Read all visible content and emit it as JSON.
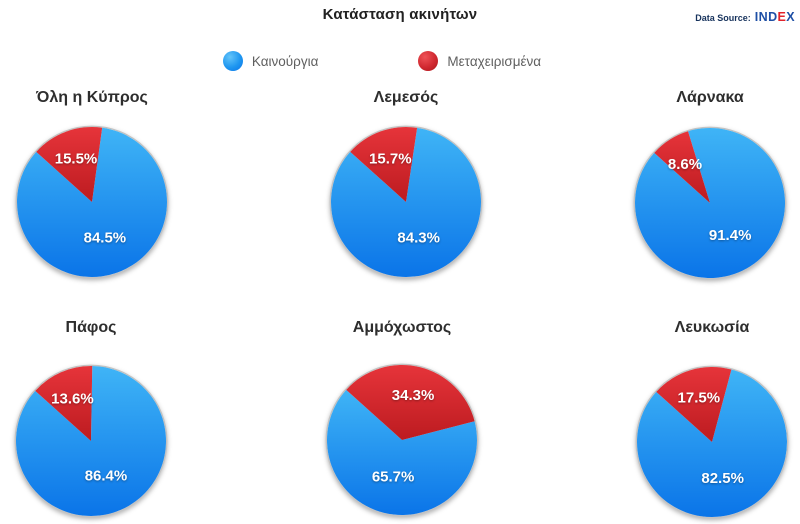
{
  "page": {
    "title": "Κατάσταση ακινήτων"
  },
  "data_source": {
    "label": "Data Source:",
    "brand_parts": [
      {
        "text": "IND",
        "color": "#1E4FA5"
      },
      {
        "text": "E",
        "color": "#E2242B"
      },
      {
        "text": "X",
        "color": "#1E4FA5"
      }
    ]
  },
  "legend": [
    {
      "label": "Καινούργια",
      "color": "#1E96F0"
    },
    {
      "label": "Μεταχειρισμένα",
      "color": "#C82127"
    }
  ],
  "chart_data": [
    {
      "type": "pie",
      "title": "Όλη η Κύπρος",
      "categories": [
        "Καινούργια",
        "Μεταχειρισμένα"
      ],
      "values": [
        84.5,
        15.5
      ],
      "value_labels": [
        "84.5%",
        "15.5%"
      ]
    },
    {
      "type": "pie",
      "title": "Λεμεσός",
      "categories": [
        "Καινούργια",
        "Μεταχειρισμένα"
      ],
      "values": [
        84.3,
        15.7
      ],
      "value_labels": [
        "84.3%",
        "15.7%"
      ]
    },
    {
      "type": "pie",
      "title": "Λάρνακα",
      "categories": [
        "Καινούργια",
        "Μεταχειρισμένα"
      ],
      "values": [
        91.4,
        8.6
      ],
      "value_labels": [
        "91.4%",
        "8.6%"
      ]
    },
    {
      "type": "pie",
      "title": "Πάφος",
      "categories": [
        "Καινούργια",
        "Μεταχειρισμένα"
      ],
      "values": [
        86.4,
        13.6
      ],
      "value_labels": [
        "86.4%",
        "13.6%"
      ]
    },
    {
      "type": "pie",
      "title": "Αμμόχωστος",
      "categories": [
        "Καινούργια",
        "Μεταχειρισμένα"
      ],
      "values": [
        65.7,
        34.3
      ],
      "value_labels": [
        "65.7%",
        "34.3%"
      ]
    },
    {
      "type": "pie",
      "title": "Λευκωσία",
      "categories": [
        "Καινούργια",
        "Μεταχειρισμένα"
      ],
      "values": [
        82.5,
        17.5
      ],
      "value_labels": [
        "82.5%",
        "17.5%"
      ]
    }
  ],
  "style": {
    "blue_top": "#3FB4F6",
    "blue_bottom": "#0A74E8",
    "red_top": "#E6343A",
    "red_bottom": "#BC1B20",
    "label_color": "#FFFFFF"
  }
}
